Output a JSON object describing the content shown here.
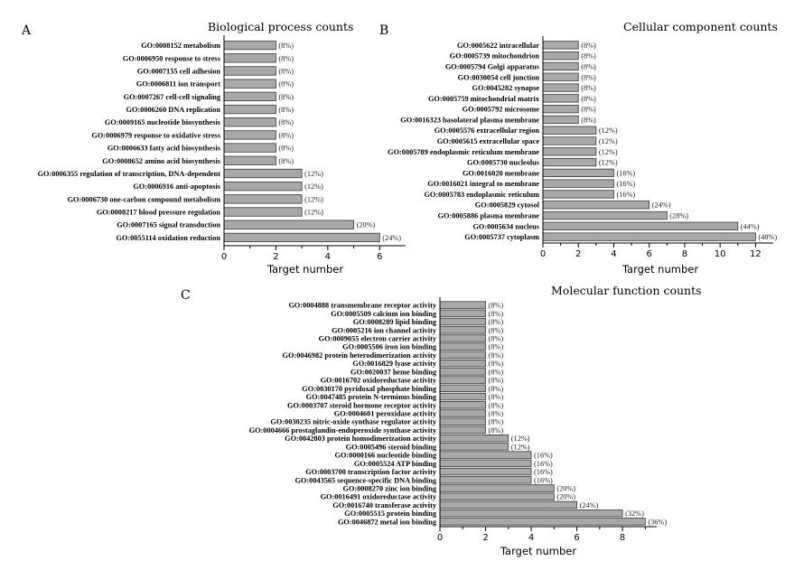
{
  "chart_data": [
    {
      "type": "bar",
      "orientation": "horizontal",
      "panel_label": "A",
      "title": "Biological process counts",
      "xlabel": "Target number",
      "xlim": [
        0,
        7
      ],
      "xticks": [
        0,
        2,
        4,
        6
      ],
      "categories": [
        "GO:0008152 metabolism",
        "GO:0006950 response to stress",
        "GO:0007155 cell adhesion",
        "GO:0006811 ion transport",
        "GO:0007267 cell-cell signaling",
        "GO:0006260 DNA replication",
        "GO:0009165 nucleotide biosynthesis",
        "GO:0006979 response to oxidative stress",
        "GO:0006633 fatty acid biosynthesis",
        "GO:0008652 amino acid biosynthesis",
        "GO:0006355 regulation of transcription, DNA-dependent",
        "GO:0006916 anti-apoptosis",
        "GO:0006730 one-carbon compound metabolism",
        "GO:0008217 blood pressure regulation",
        "GO:0007165 signal transduction",
        "GO:0055114 oxidation reduction"
      ],
      "values": [
        2,
        2,
        2,
        2,
        2,
        2,
        2,
        2,
        2,
        2,
        3,
        3,
        3,
        3,
        5,
        6
      ],
      "labels": [
        "(8%)",
        "(8%)",
        "(8%)",
        "(8%)",
        "(8%)",
        "(8%)",
        "(8%)",
        "(8%)",
        "(8%)",
        "(8%)",
        "(12%)",
        "(12%)",
        "(12%)",
        "(12%)",
        "(20%)",
        "(24%)"
      ]
    },
    {
      "type": "bar",
      "orientation": "horizontal",
      "panel_label": "B",
      "title": "Cellular component counts",
      "xlabel": "Target number",
      "xlim": [
        0,
        13
      ],
      "xticks": [
        0,
        2,
        4,
        6,
        8,
        10,
        12
      ],
      "categories": [
        "GO:0005622 intracellular",
        "GO:0005739 mitochondrion",
        "GO:0005794 Golgi apparatus",
        "GO:0030054 cell junction",
        "GO:0045202 synapse",
        "GO:0005759 mitochondrial matrix",
        "GO:0005792 microsome",
        "GO:0016323 basolateral plasma membrane",
        "GO:0005576 extracellular region",
        "GO:0005615 extracellular space",
        "GO:0005789 endoplasmic reticulum membrane",
        "GO:0005730 nucleolus",
        "GO:0016020 membrane",
        "GO:0016021 integral to membrane",
        "GO:0005783 endoplasmic reticulum",
        "GO:0005829 cytosol",
        "GO:0005886 plasma membrane",
        "GO:0005634 nucleus",
        "GO:0005737 cytoplasm"
      ],
      "values": [
        2,
        2,
        2,
        2,
        2,
        2,
        2,
        2,
        3,
        3,
        3,
        3,
        4,
        4,
        4,
        6,
        7,
        11,
        12
      ],
      "labels": [
        "(8%)",
        "(8%)",
        "(8%)",
        "(8%)",
        "(8%)",
        "(8%)",
        "(8%)",
        "(8%)",
        "(12%)",
        "(12%)",
        "(12%)",
        "(12%)",
        "(16%)",
        "(16%)",
        "(16%)",
        "(24%)",
        "(28%)",
        "(44%)",
        "(48%)"
      ]
    },
    {
      "type": "bar",
      "orientation": "horizontal",
      "panel_label": "C",
      "title": "Molecular function counts",
      "xlabel": "Target number",
      "xlim": [
        0,
        9.5
      ],
      "xticks": [
        0,
        2,
        4,
        6,
        8
      ],
      "categories": [
        "GO:0004888 transmembrane receptor activity",
        "GO:0005509 calcium ion binding",
        "GO:0008289 lipid binding",
        "GO:0005216 ion channel activity",
        "GO:0009055 electron carrier activity",
        "GO:0005506 iron ion binding",
        "GO:0046982 protein heterodimerization activity",
        "GO:0016829 lyase activity",
        "GO:0020037 heme binding",
        "GO:0016702 oxidoreductase activity",
        "GO:0030170 pyridoxal phosphate binding",
        "GO:0047485 protein N-terminus binding",
        "GO:0003707 steroid hormone receptor activity",
        "GO:0004601 peroxidase activity",
        "GO:0030235 nitric-oxide synthase regulator activity",
        "GO:0004666 prostaglandin-endoperoxide synthase activity",
        "GO:0042803 protein homodimerization activity",
        "GO:0005496 steroid binding",
        "GO:0000166 nucleotide binding",
        "GO:0005524 ATP binding",
        "GO:0003700 transcription factor activity",
        "GO:0043565 sequence-specific DNA binding",
        "GO:0008270 zinc ion binding",
        "GO:0016491 oxidoreductase activity",
        "GO:0016740 transferase activity",
        "GO:0005515 protein binding",
        "GO:0046872 metal ion binding"
      ],
      "values": [
        2,
        2,
        2,
        2,
        2,
        2,
        2,
        2,
        2,
        2,
        2,
        2,
        2,
        2,
        2,
        2,
        3,
        3,
        4,
        4,
        4,
        4,
        5,
        5,
        6,
        8,
        9
      ],
      "labels": [
        "(8%)",
        "(8%)",
        "(8%)",
        "(8%)",
        "(8%)",
        "(8%)",
        "(8%)",
        "(8%)",
        "(8%)",
        "(8%)",
        "(8%)",
        "(8%)",
        "(8%)",
        "(8%)",
        "(8%)",
        "(8%)",
        "(12%)",
        "(12%)",
        "(16%)",
        "(16%)",
        "(16%)",
        "(16%)",
        "(20%)",
        "(20%)",
        "(24%)",
        "(32%)",
        "(36%)"
      ]
    }
  ],
  "colors": {
    "bar_fill": "#a8a8a8",
    "bar_stroke": "#3a3a3a",
    "text": "#000000"
  }
}
